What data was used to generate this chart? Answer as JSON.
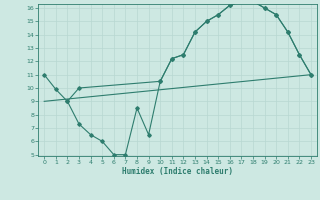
{
  "line1_x": [
    0,
    1,
    2,
    3,
    10,
    11,
    12,
    13,
    14,
    15,
    16,
    17,
    18,
    19,
    20,
    21,
    22,
    23
  ],
  "line1_y": [
    11,
    9.9,
    9.0,
    10.0,
    10.5,
    12.2,
    12.5,
    14.2,
    15.0,
    15.5,
    16.2,
    16.5,
    16.5,
    16.0,
    15.5,
    14.2,
    12.5,
    11.0
  ],
  "line2_x": [
    2,
    3,
    4,
    5,
    6,
    7,
    8,
    9,
    10,
    11,
    12,
    13,
    14,
    15,
    16,
    17,
    18,
    19,
    20,
    21,
    22,
    23
  ],
  "line2_y": [
    9.0,
    7.3,
    6.5,
    6.0,
    5.0,
    5.0,
    8.5,
    6.5,
    10.5,
    12.2,
    12.5,
    14.2,
    15.0,
    15.5,
    16.2,
    16.5,
    16.5,
    16.0,
    15.5,
    14.2,
    12.5,
    11.0
  ],
  "line3_x": [
    0,
    23
  ],
  "line3_y": [
    9.0,
    11.0
  ],
  "line_color": "#2e7d6e",
  "bg_color": "#cde8e2",
  "grid_color": "#b8d8d2",
  "xlabel": "Humidex (Indice chaleur)",
  "ylim": [
    5,
    16
  ],
  "xlim": [
    -0.5,
    23.5
  ],
  "yticks": [
    5,
    6,
    7,
    8,
    9,
    10,
    11,
    12,
    13,
    14,
    15,
    16
  ],
  "xticks": [
    0,
    1,
    2,
    3,
    4,
    5,
    6,
    7,
    8,
    9,
    10,
    11,
    12,
    13,
    14,
    15,
    16,
    17,
    18,
    19,
    20,
    21,
    22,
    23
  ]
}
